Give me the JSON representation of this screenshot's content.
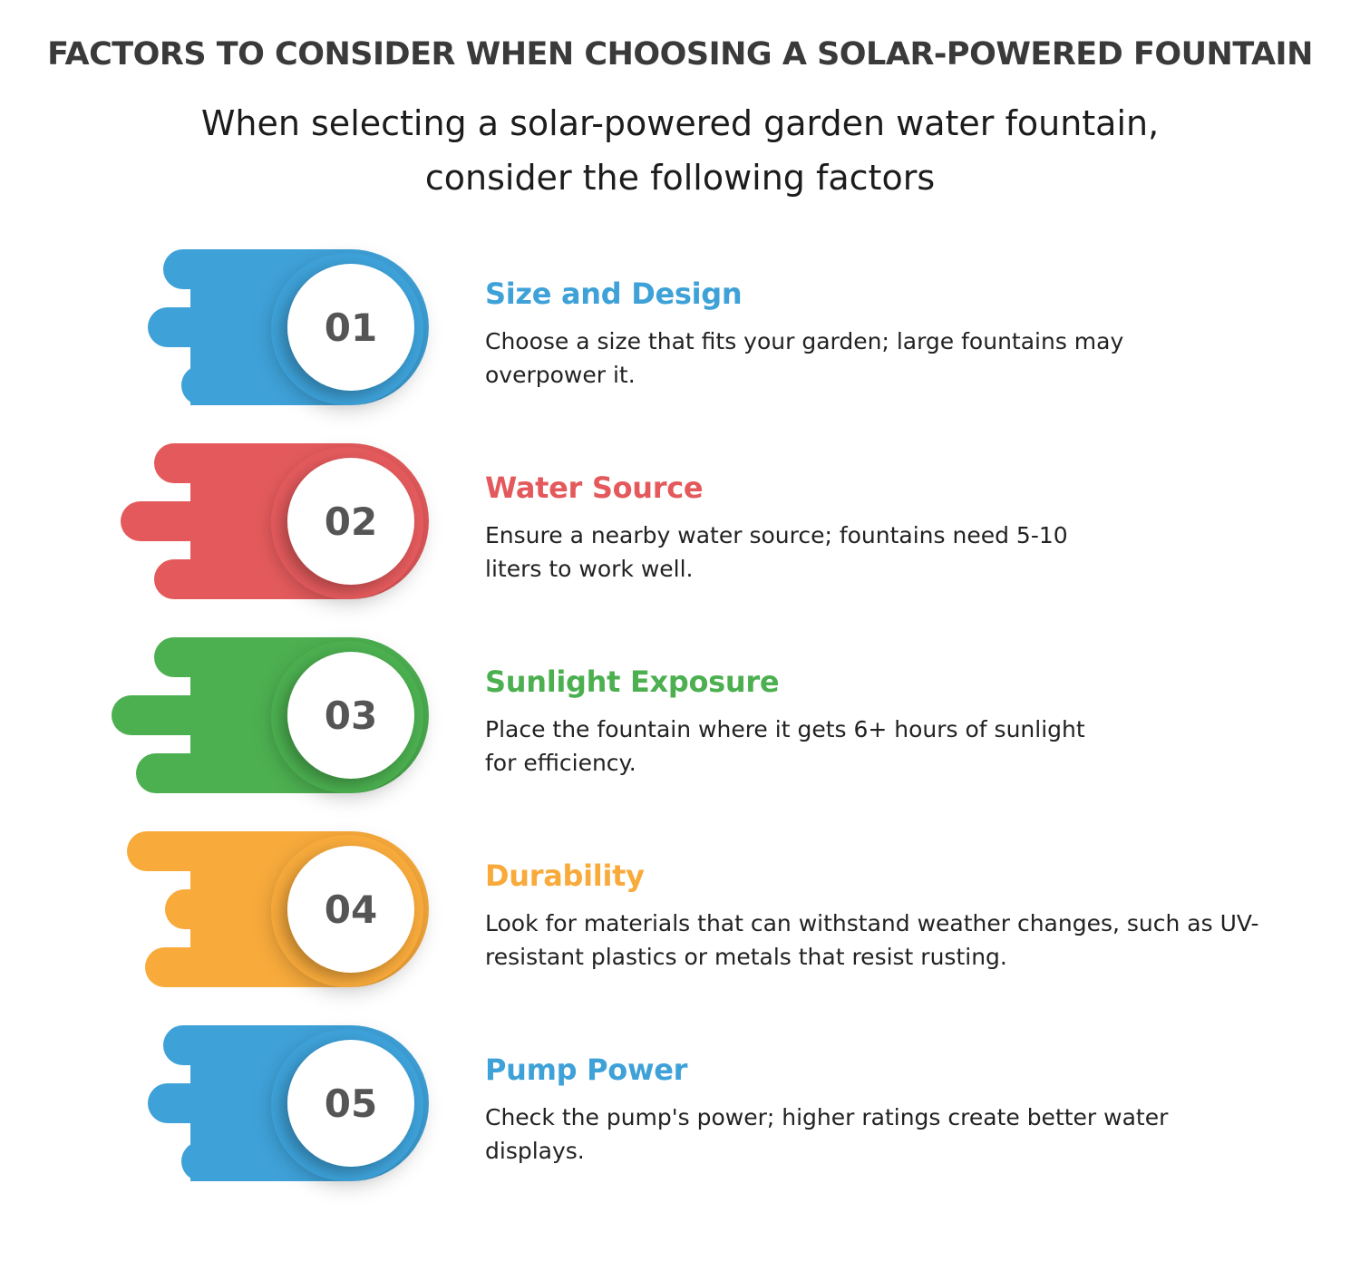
{
  "title": "FACTORS TO CONSIDER WHEN CHOOSING A SOLAR-POWERED FOUNTAIN",
  "subtitle": "When selecting a solar-powered garden water fountain, consider the following factors",
  "colors": {
    "blue": "#3ea1d8",
    "red": "#e45a5c",
    "green": "#4caf50",
    "orange": "#f8aa3b",
    "number_text": "#555555"
  },
  "factors": [
    {
      "number": "01",
      "heading": "Size and Design",
      "description": "Choose a size that fits your garden; large fountains may overpower it.",
      "color": "#3ea1d8"
    },
    {
      "number": "02",
      "heading": "Water Source",
      "description": "Ensure a nearby water source; fountains need 5-10 liters to work well.",
      "color": "#e45a5c"
    },
    {
      "number": "03",
      "heading": "Sunlight Exposure",
      "description": "Place the fountain where it gets 6+ hours of sunlight for efficiency.",
      "color": "#4caf50"
    },
    {
      "number": "04",
      "heading": "Durability",
      "description": "Look for materials that can withstand weather changes, such as UV-resistant plastics or metals that resist rusting.",
      "color": "#f8aa3b"
    },
    {
      "number": "05",
      "heading": "Pump Power",
      "description": "Check the pump's power; higher ratings create better water displays.",
      "color": "#3ea1d8"
    }
  ]
}
